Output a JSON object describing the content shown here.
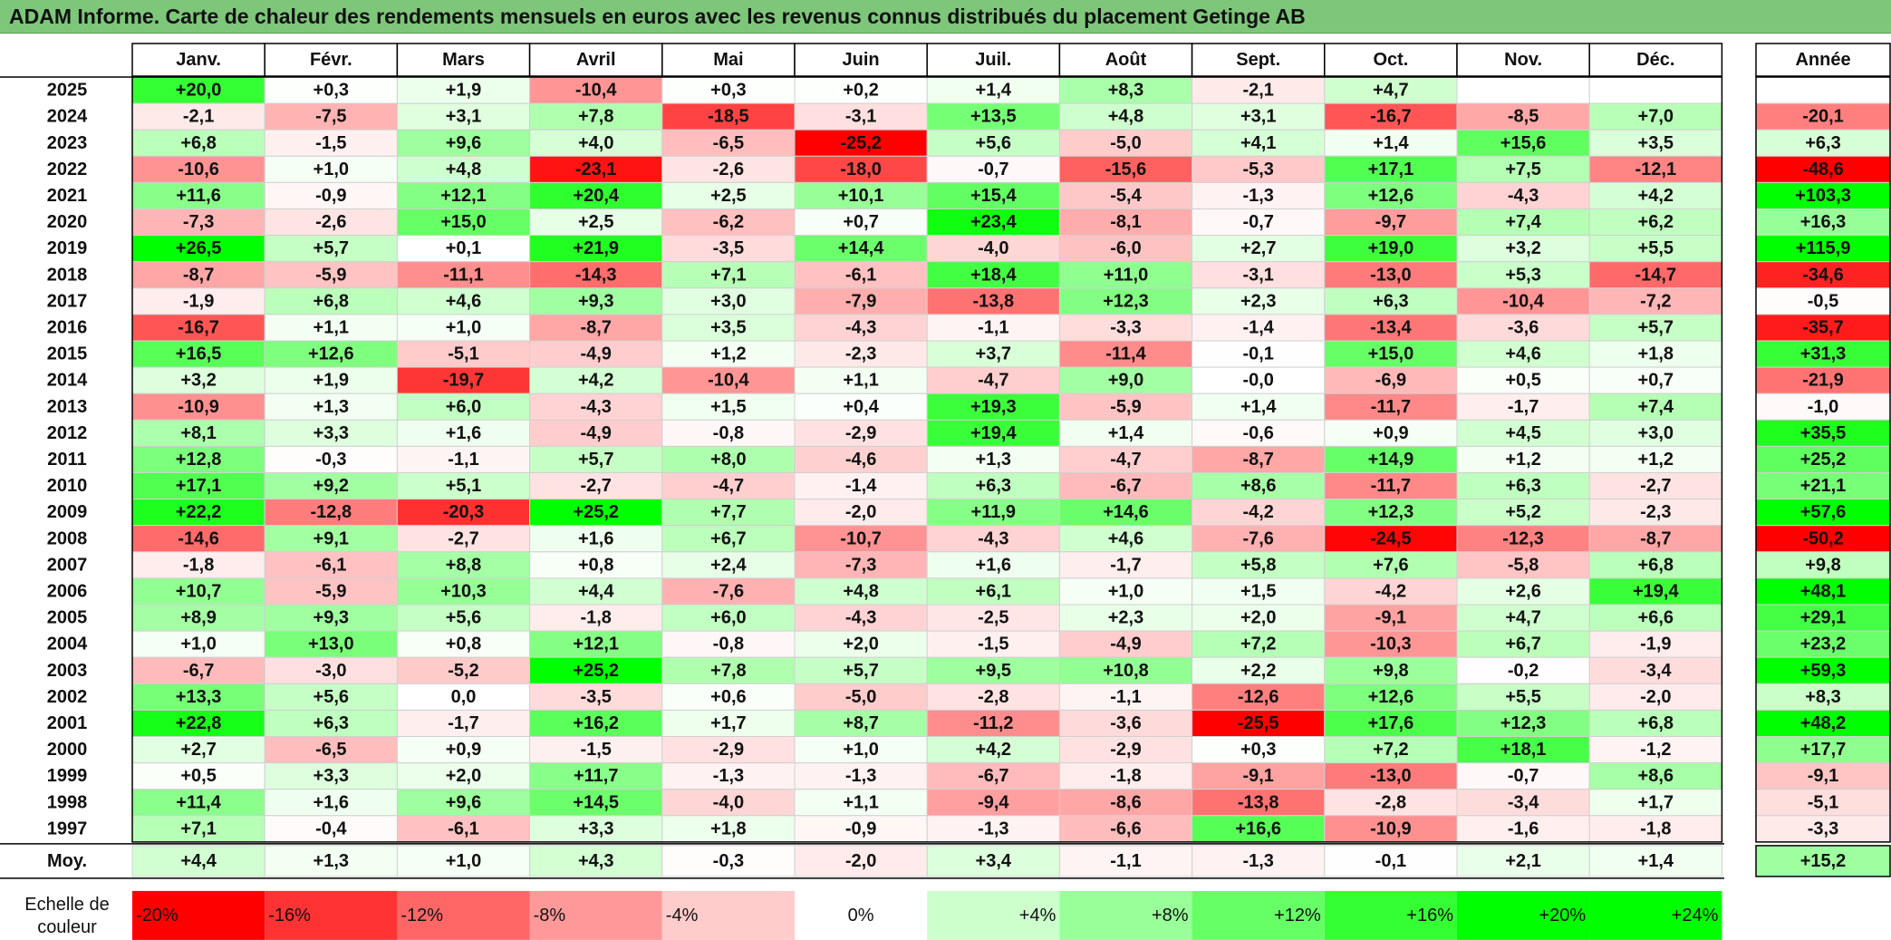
{
  "title": "ADAM Informe. Carte de chaleur des rendements mensuels en euros avec les revenus connus distribués du placement Getinge AB",
  "chart_data": {
    "type": "heatmap",
    "columns": [
      "Janv.",
      "Févr.",
      "Mars",
      "Avril",
      "Mai",
      "Juin",
      "Juil.",
      "Août",
      "Sept.",
      "Oct.",
      "Nov.",
      "Déc."
    ],
    "year_column_label": "Année",
    "rows": [
      {
        "year": "2025",
        "values": [
          "+20,0",
          "+0,3",
          "+1,9",
          "-10,4",
          "+0,3",
          "+0,2",
          "+1,4",
          "+8,3",
          "-2,1",
          "+4,7",
          "",
          ""
        ],
        "annual": ""
      },
      {
        "year": "2024",
        "values": [
          "-2,1",
          "-7,5",
          "+3,1",
          "+7,8",
          "-18,5",
          "-3,1",
          "+13,5",
          "+4,8",
          "+3,1",
          "-16,7",
          "-8,5",
          "+7,0"
        ],
        "annual": "-20,1"
      },
      {
        "year": "2023",
        "values": [
          "+6,8",
          "-1,5",
          "+9,6",
          "+4,0",
          "-6,5",
          "-25,2",
          "+5,6",
          "-5,0",
          "+4,1",
          "+1,4",
          "+15,6",
          "+3,5"
        ],
        "annual": "+6,3"
      },
      {
        "year": "2022",
        "values": [
          "-10,6",
          "+1,0",
          "+4,8",
          "-23,1",
          "-2,6",
          "-18,0",
          "-0,7",
          "-15,6",
          "-5,3",
          "+17,1",
          "+7,5",
          "-12,1"
        ],
        "annual": "-48,6"
      },
      {
        "year": "2021",
        "values": [
          "+11,6",
          "-0,9",
          "+12,1",
          "+20,4",
          "+2,5",
          "+10,1",
          "+15,4",
          "-5,4",
          "-1,3",
          "+12,6",
          "-4,3",
          "+4,2"
        ],
        "annual": "+103,3"
      },
      {
        "year": "2020",
        "values": [
          "-7,3",
          "-2,6",
          "+15,0",
          "+2,5",
          "-6,2",
          "+0,7",
          "+23,4",
          "-8,1",
          "-0,7",
          "-9,7",
          "+7,4",
          "+6,2"
        ],
        "annual": "+16,3"
      },
      {
        "year": "2019",
        "values": [
          "+26,5",
          "+5,7",
          "+0,1",
          "+21,9",
          "-3,5",
          "+14,4",
          "-4,0",
          "-6,0",
          "+2,7",
          "+19,0",
          "+3,2",
          "+5,5"
        ],
        "annual": "+115,9"
      },
      {
        "year": "2018",
        "values": [
          "-8,7",
          "-5,9",
          "-11,1",
          "-14,3",
          "+7,1",
          "-6,1",
          "+18,4",
          "+11,0",
          "-3,1",
          "-13,0",
          "+5,3",
          "-14,7"
        ],
        "annual": "-34,6"
      },
      {
        "year": "2017",
        "values": [
          "-1,9",
          "+6,8",
          "+4,6",
          "+9,3",
          "+3,0",
          "-7,9",
          "-13,8",
          "+12,3",
          "+2,3",
          "+6,3",
          "-10,4",
          "-7,2"
        ],
        "annual": "-0,5"
      },
      {
        "year": "2016",
        "values": [
          "-16,7",
          "+1,1",
          "+1,0",
          "-8,7",
          "+3,5",
          "-4,3",
          "-1,1",
          "-3,3",
          "-1,4",
          "-13,4",
          "-3,6",
          "+5,7"
        ],
        "annual": "-35,7"
      },
      {
        "year": "2015",
        "values": [
          "+16,5",
          "+12,6",
          "-5,1",
          "-4,9",
          "+1,2",
          "-2,3",
          "+3,7",
          "-11,4",
          "-0,1",
          "+15,0",
          "+4,6",
          "+1,8"
        ],
        "annual": "+31,3"
      },
      {
        "year": "2014",
        "values": [
          "+3,2",
          "+1,9",
          "-19,7",
          "+4,2",
          "-10,4",
          "+1,1",
          "-4,7",
          "+9,0",
          "-0,0",
          "-6,9",
          "+0,5",
          "+0,7"
        ],
        "annual": "-21,9"
      },
      {
        "year": "2013",
        "values": [
          "-10,9",
          "+1,3",
          "+6,0",
          "-4,3",
          "+1,5",
          "+0,4",
          "+19,3",
          "-5,9",
          "+1,4",
          "-11,7",
          "-1,7",
          "+7,4"
        ],
        "annual": "-1,0"
      },
      {
        "year": "2012",
        "values": [
          "+8,1",
          "+3,3",
          "+1,6",
          "-4,9",
          "-0,8",
          "-2,9",
          "+19,4",
          "+1,4",
          "-0,6",
          "+0,9",
          "+4,5",
          "+3,0"
        ],
        "annual": "+35,5"
      },
      {
        "year": "2011",
        "values": [
          "+12,8",
          "-0,3",
          "-1,1",
          "+5,7",
          "+8,0",
          "-4,6",
          "+1,3",
          "-4,7",
          "-8,7",
          "+14,9",
          "+1,2",
          "+1,2"
        ],
        "annual": "+25,2"
      },
      {
        "year": "2010",
        "values": [
          "+17,1",
          "+9,2",
          "+5,1",
          "-2,7",
          "-4,7",
          "-1,4",
          "+6,3",
          "-6,7",
          "+8,6",
          "-11,7",
          "+6,3",
          "-2,7"
        ],
        "annual": "+21,1"
      },
      {
        "year": "2009",
        "values": [
          "+22,2",
          "-12,8",
          "-20,3",
          "+25,2",
          "+7,7",
          "-2,0",
          "+11,9",
          "+14,6",
          "-4,2",
          "+12,3",
          "+5,2",
          "-2,3"
        ],
        "annual": "+57,6"
      },
      {
        "year": "2008",
        "values": [
          "-14,6",
          "+9,1",
          "-2,7",
          "+1,6",
          "+6,7",
          "-10,7",
          "-4,3",
          "+4,6",
          "-7,6",
          "-24,5",
          "-12,3",
          "-8,7"
        ],
        "annual": "-50,2"
      },
      {
        "year": "2007",
        "values": [
          "-1,8",
          "-6,1",
          "+8,8",
          "+0,8",
          "+2,4",
          "-7,3",
          "+1,6",
          "-1,7",
          "+5,8",
          "+7,6",
          "-5,8",
          "+6,8"
        ],
        "annual": "+9,8"
      },
      {
        "year": "2006",
        "values": [
          "+10,7",
          "-5,9",
          "+10,3",
          "+4,4",
          "-7,6",
          "+4,8",
          "+6,1",
          "+1,0",
          "+1,5",
          "-4,2",
          "+2,6",
          "+19,4"
        ],
        "annual": "+48,1"
      },
      {
        "year": "2005",
        "values": [
          "+8,9",
          "+9,3",
          "+5,6",
          "-1,8",
          "+6,0",
          "-4,3",
          "-2,5",
          "+2,3",
          "+2,0",
          "-9,1",
          "+4,7",
          "+6,6"
        ],
        "annual": "+29,1"
      },
      {
        "year": "2004",
        "values": [
          "+1,0",
          "+13,0",
          "+0,8",
          "+12,1",
          "-0,8",
          "+2,0",
          "-1,5",
          "-4,9",
          "+7,2",
          "-10,3",
          "+6,7",
          "-1,9"
        ],
        "annual": "+23,2"
      },
      {
        "year": "2003",
        "values": [
          "-6,7",
          "-3,0",
          "-5,2",
          "+25,2",
          "+7,8",
          "+5,7",
          "+9,5",
          "+10,8",
          "+2,2",
          "+9,8",
          "-0,2",
          "-3,4"
        ],
        "annual": "+59,3"
      },
      {
        "year": "2002",
        "values": [
          "+13,3",
          "+5,6",
          "0,0",
          "-3,5",
          "+0,6",
          "-5,0",
          "-2,8",
          "-1,1",
          "-12,6",
          "+12,6",
          "+5,5",
          "-2,0"
        ],
        "annual": "+8,3"
      },
      {
        "year": "2001",
        "values": [
          "+22,8",
          "+6,3",
          "-1,7",
          "+16,2",
          "+1,7",
          "+8,7",
          "-11,2",
          "-3,6",
          "-25,5",
          "+17,6",
          "+12,3",
          "+6,8"
        ],
        "annual": "+48,2"
      },
      {
        "year": "2000",
        "values": [
          "+2,7",
          "-6,5",
          "+0,9",
          "-1,5",
          "-2,9",
          "+1,0",
          "+4,2",
          "-2,9",
          "+0,3",
          "+7,2",
          "+18,1",
          "-1,2"
        ],
        "annual": "+17,7"
      },
      {
        "year": "1999",
        "values": [
          "+0,5",
          "+3,3",
          "+2,0",
          "+11,7",
          "-1,3",
          "-1,3",
          "-6,7",
          "-1,8",
          "-9,1",
          "-13,0",
          "-0,7",
          "+8,6"
        ],
        "annual": "-9,1"
      },
      {
        "year": "1998",
        "values": [
          "+11,4",
          "+1,6",
          "+9,6",
          "+14,5",
          "-4,0",
          "+1,1",
          "-9,4",
          "-8,6",
          "-13,8",
          "-2,8",
          "-3,4",
          "+1,7"
        ],
        "annual": "-5,1"
      },
      {
        "year": "1997",
        "values": [
          "+7,1",
          "-0,4",
          "-6,1",
          "+3,3",
          "+1,8",
          "-0,9",
          "-1,3",
          "-6,6",
          "+16,6",
          "-10,9",
          "-1,6",
          "-1,8"
        ],
        "annual": "-3,3"
      }
    ],
    "average": {
      "label": "Moy.",
      "values": [
        "+4,4",
        "+1,3",
        "+1,0",
        "+4,3",
        "-0,3",
        "-2,0",
        "+3,4",
        "-1,1",
        "-1,3",
        "-0,1",
        "+2,1",
        "+1,4"
      ],
      "annual": "+15,2"
    },
    "color_scale": {
      "label_line1": "Echelle de",
      "label_line2": "couleur",
      "steps": [
        {
          "label": "-20%",
          "value": -20,
          "color": "#ff0000"
        },
        {
          "label": "-16%",
          "value": -16,
          "color": "#ff3333"
        },
        {
          "label": "-12%",
          "value": -12,
          "color": "#ff6666"
        },
        {
          "label": "-8%",
          "value": -8,
          "color": "#ff9999"
        },
        {
          "label": "-4%",
          "value": -4,
          "color": "#ffcccc"
        },
        {
          "label": "0%",
          "value": 0,
          "color": "#ffffff"
        },
        {
          "label": "+4%",
          "value": 4,
          "color": "#ccffcc"
        },
        {
          "label": "+8%",
          "value": 8,
          "color": "#99ff99"
        },
        {
          "label": "+12%",
          "value": 12,
          "color": "#66ff66"
        },
        {
          "label": "+16%",
          "value": 16,
          "color": "#33ff33"
        },
        {
          "label": "+20%",
          "value": 20,
          "color": "#00ff00"
        },
        {
          "label": "+24%",
          "value": 24,
          "color": "#00ff00"
        }
      ]
    }
  }
}
